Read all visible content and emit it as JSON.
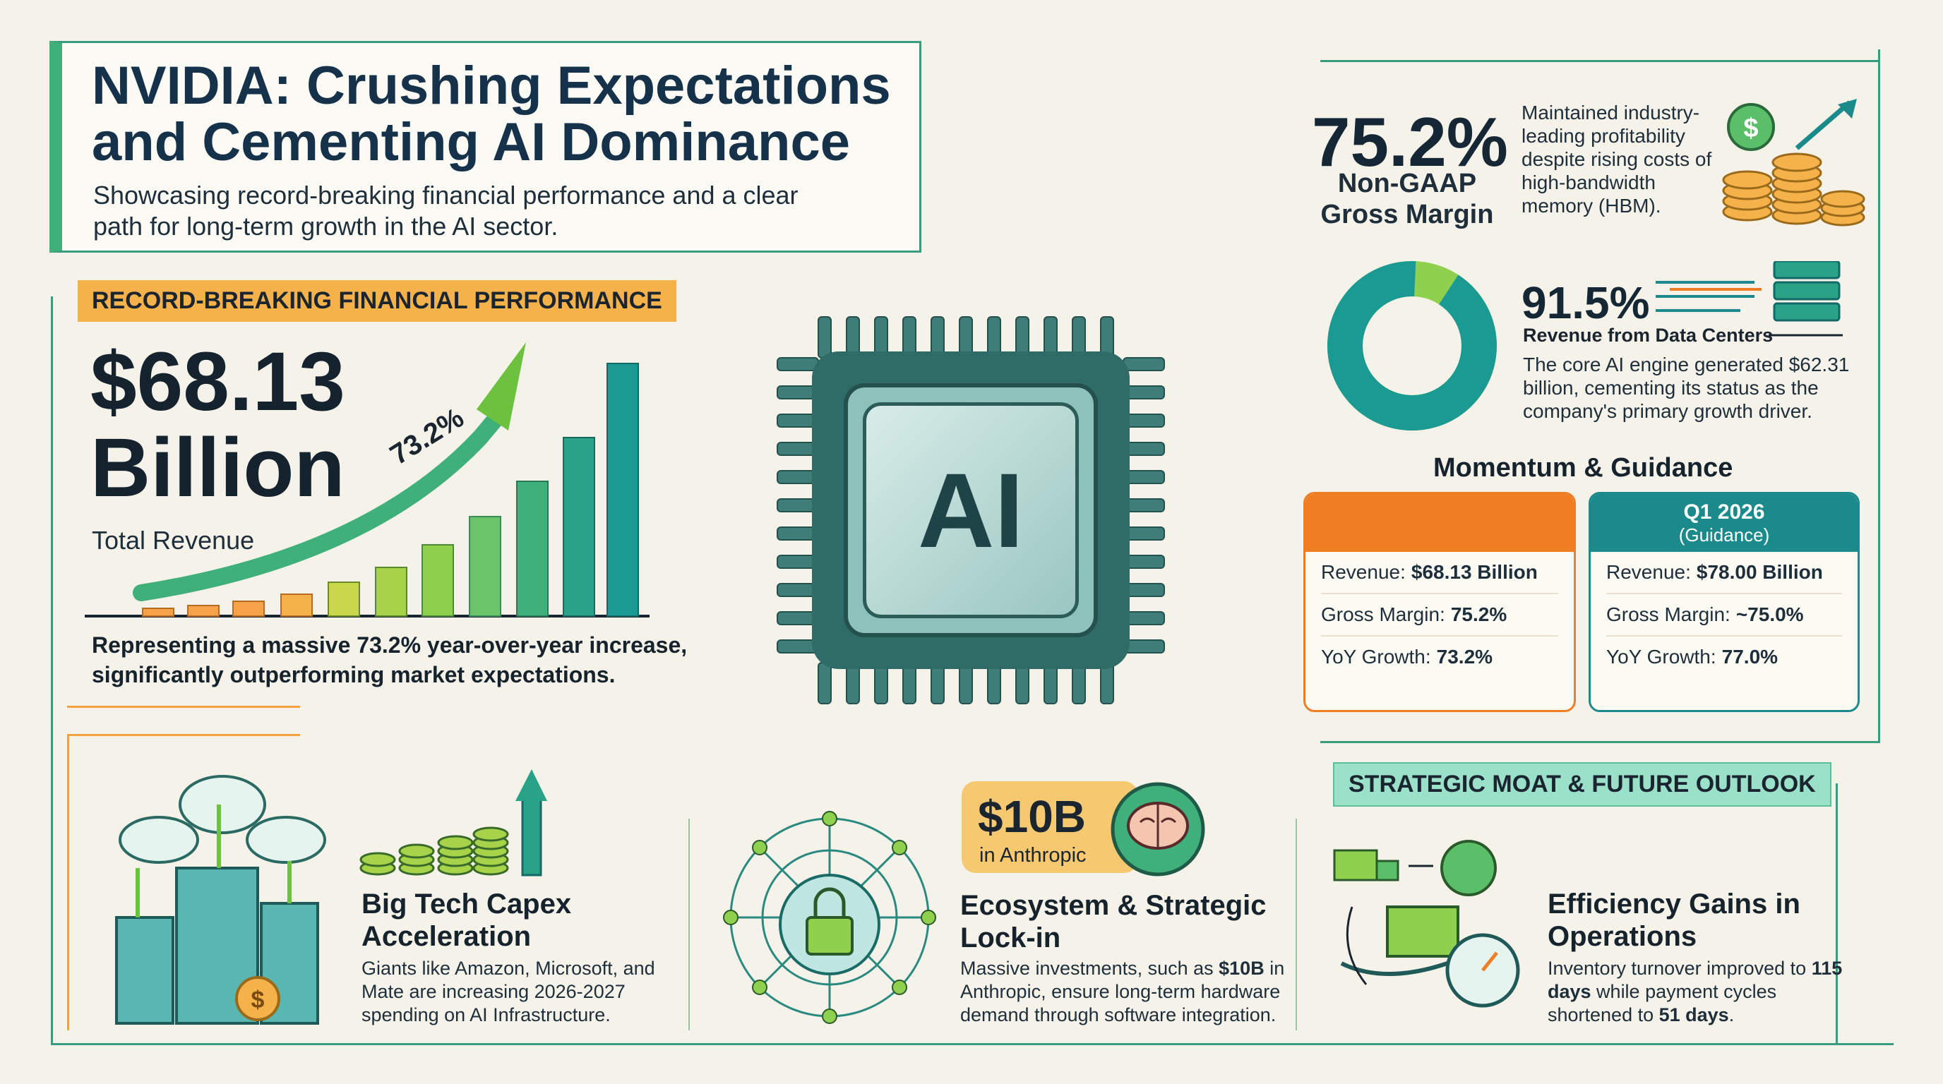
{
  "header": {
    "title": "NVIDIA: Crushing Expectations and Cementing AI Dominance",
    "subtitle": "Showcasing record-breaking financial performance and a clear path for long-term growth in the AI sector."
  },
  "revenue": {
    "section_title": "RECORD-BREAKING FINANCIAL PERFORMANCE",
    "amount": "$68.13 Billion",
    "amount_line1": "$68.13",
    "amount_line2": "Billion",
    "label": "Total Revenue",
    "growth_label": "73.2%",
    "description": "Representing a massive 73.2% year-over-year increase, significantly outperforming market expectations."
  },
  "chip": {
    "text": "AI"
  },
  "gross_margin": {
    "value": "75.2%",
    "label": "Non-GAAP Gross Margin",
    "description": "Maintained industry-leading profitability despite rising costs of high-bandwidth memory (HBM)."
  },
  "data_center": {
    "value": "91.5%",
    "share": 0.915,
    "label": "Revenue from Data Centers",
    "description": "The core AI engine generated $62.31 billion, cementing its status as the company's primary growth driver."
  },
  "guidance": {
    "title": "Momentum & Guidance",
    "current": {
      "header": "",
      "rows": [
        {
          "label": "Revenue:",
          "value": "$68.13 Billion"
        },
        {
          "label": "Gross Margin:",
          "value": "75.2%"
        },
        {
          "label": "YoY Growth:",
          "value": "73.2%"
        }
      ]
    },
    "next": {
      "header": "Q1 2026",
      "subheader": "(Guidance)",
      "rows": [
        {
          "label": "Revenue:",
          "value": "$78.00 Billion"
        },
        {
          "label": "Gross Margin:",
          "value": "~75.0%"
        },
        {
          "label": "YoY Growth:",
          "value": "77.0%"
        }
      ]
    }
  },
  "moat": {
    "section_title": "STRATEGIC MOAT & FUTURE OUTLOOK",
    "capex": {
      "title": "Big Tech Capex Acceleration",
      "description": "Giants like Amazon, Microsoft, and Mate are increasing 2026-2027 spending on AI Infrastructure."
    },
    "ecosystem": {
      "badge_amount": "$10B",
      "badge_label": "in Anthropic",
      "title": "Ecosystem & Strategic Lock-in",
      "description_parts": [
        "Massive investments, such as ",
        "$10B",
        " in Anthropic, ensure long-term hardware demand through software integration."
      ]
    },
    "efficiency": {
      "title": "Efficiency Gains in Operations",
      "description_parts": [
        "Inventory turnover improved to ",
        "115 days",
        " while payment cycles shortened to ",
        "51 days",
        "."
      ]
    }
  },
  "colors": {
    "teal": "#1a8a8a",
    "green": "#3fb07a",
    "orange": "#ee7d23",
    "gold": "#f6b24a",
    "lime": "#8fd14f",
    "navy": "#16324a"
  },
  "icons": [
    "growth-arrow-icon",
    "ai-chip-icon",
    "coins-icon",
    "server-rack-icon",
    "cloud-buildings-icon",
    "network-lock-icon",
    "brain-icon",
    "logistics-cycle-icon"
  ]
}
